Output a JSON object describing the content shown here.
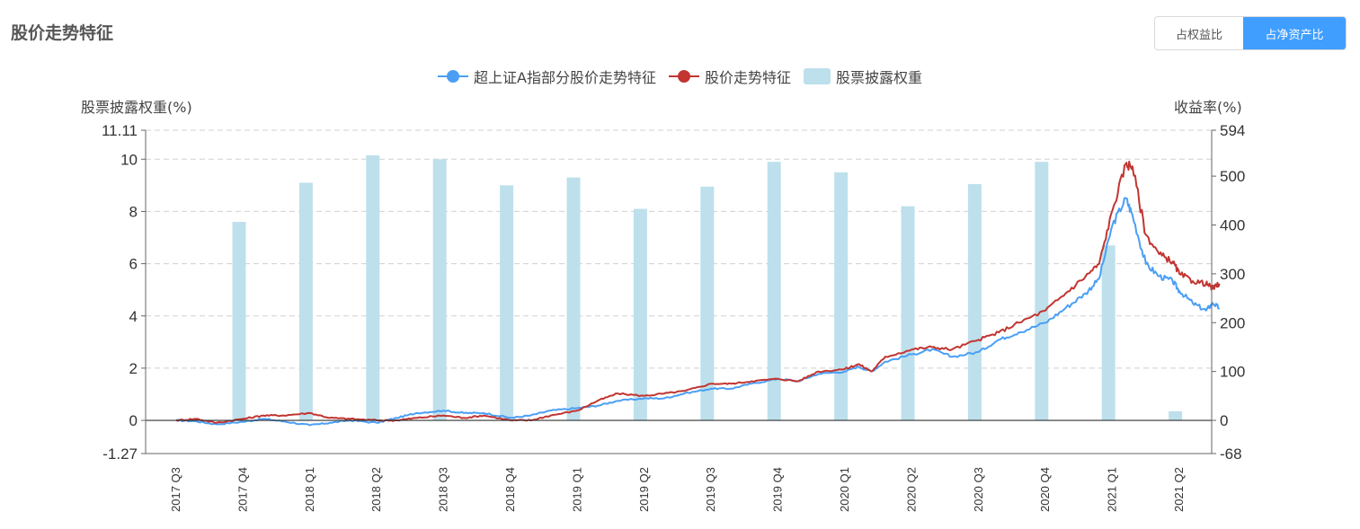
{
  "header": {
    "title": "股价走势特征",
    "toggle": [
      {
        "label": "占权益比",
        "active": false
      },
      {
        "label": "占净资产比",
        "active": true
      }
    ]
  },
  "legend": [
    {
      "label": "超上证A指部分股价走势特征",
      "color": "#4a9ff5",
      "kind": "line"
    },
    {
      "label": "股价走势特征",
      "color": "#c23531",
      "kind": "line"
    },
    {
      "label": "股票披露权重",
      "color": "#bde0ec",
      "kind": "bar"
    }
  ],
  "axis_titles": {
    "left": "股票披露权重(%)",
    "right": "收益率(%)"
  },
  "chart_data": {
    "type": "bar+line",
    "left_axis": {
      "min": -1.27,
      "max": 11.11,
      "ticks": [
        "-1.27",
        "0",
        "2",
        "4",
        "6",
        "8",
        "10",
        "11.11"
      ]
    },
    "right_axis": {
      "min": -68,
      "max": 594,
      "ticks": [
        "-68",
        "0",
        "100",
        "200",
        "300",
        "400",
        "500",
        "594"
      ]
    },
    "categories": [
      "2017 Q3",
      "2017 Q4",
      "2018 Q1",
      "2018 Q2",
      "2018 Q3",
      "2018 Q4",
      "2019 Q1",
      "2019 Q2",
      "2019 Q3",
      "2019 Q4",
      "2020 Q1",
      "2020 Q2",
      "2020 Q3",
      "2020 Q4",
      "2021 Q1",
      "2021 Q2"
    ],
    "bars": {
      "name": "股票披露权重",
      "values": [
        null,
        7.6,
        9.1,
        10.15,
        10.0,
        9.0,
        9.3,
        8.1,
        8.95,
        9.9,
        9.5,
        8.2,
        9.05,
        9.9,
        6.7,
        0.35
      ]
    },
    "series": [
      {
        "name": "超上证A指部分股价走势特征",
        "color": "#4a9ff5",
        "points": [
          [
            0,
            0
          ],
          [
            0.3,
            -2
          ],
          [
            0.6,
            -8
          ],
          [
            1.0,
            -3
          ],
          [
            1.3,
            3
          ],
          [
            1.6,
            -2
          ],
          [
            2.0,
            -10
          ],
          [
            2.3,
            -5
          ],
          [
            2.6,
            0
          ],
          [
            3.0,
            -5
          ],
          [
            3.3,
            5
          ],
          [
            3.6,
            15
          ],
          [
            4.0,
            20
          ],
          [
            4.3,
            15
          ],
          [
            4.6,
            15
          ],
          [
            5.0,
            5
          ],
          [
            5.3,
            10
          ],
          [
            5.6,
            20
          ],
          [
            6.0,
            25
          ],
          [
            6.3,
            30
          ],
          [
            6.6,
            40
          ],
          [
            7.0,
            45
          ],
          [
            7.3,
            45
          ],
          [
            7.6,
            55
          ],
          [
            8.0,
            65
          ],
          [
            8.3,
            65
          ],
          [
            8.6,
            75
          ],
          [
            9.0,
            85
          ],
          [
            9.3,
            80
          ],
          [
            9.6,
            95
          ],
          [
            10.0,
            100
          ],
          [
            10.2,
            110
          ],
          [
            10.4,
            100
          ],
          [
            10.6,
            120
          ],
          [
            11.0,
            135
          ],
          [
            11.3,
            145
          ],
          [
            11.6,
            130
          ],
          [
            12.0,
            140
          ],
          [
            12.3,
            165
          ],
          [
            12.6,
            180
          ],
          [
            13.0,
            200
          ],
          [
            13.3,
            230
          ],
          [
            13.6,
            260
          ],
          [
            13.8,
            290
          ],
          [
            14.0,
            400
          ],
          [
            14.2,
            455
          ],
          [
            14.3,
            420
          ],
          [
            14.5,
            320
          ],
          [
            14.7,
            295
          ],
          [
            14.9,
            285
          ],
          [
            15.0,
            265
          ],
          [
            15.2,
            240
          ],
          [
            15.4,
            225
          ],
          [
            15.5,
            240
          ],
          [
            15.6,
            230
          ]
        ]
      },
      {
        "name": "股价走势特征",
        "color": "#c23531",
        "points": [
          [
            0,
            0
          ],
          [
            0.3,
            3
          ],
          [
            0.6,
            -5
          ],
          [
            1.0,
            3
          ],
          [
            1.3,
            10
          ],
          [
            1.6,
            10
          ],
          [
            2.0,
            15
          ],
          [
            2.3,
            5
          ],
          [
            2.6,
            3
          ],
          [
            3.0,
            0
          ],
          [
            3.3,
            0
          ],
          [
            3.6,
            5
          ],
          [
            4.0,
            10
          ],
          [
            4.3,
            5
          ],
          [
            4.6,
            10
          ],
          [
            5.0,
            0
          ],
          [
            5.3,
            0
          ],
          [
            5.6,
            10
          ],
          [
            6.0,
            20
          ],
          [
            6.3,
            40
          ],
          [
            6.6,
            55
          ],
          [
            7.0,
            50
          ],
          [
            7.3,
            55
          ],
          [
            7.6,
            60
          ],
          [
            8.0,
            75
          ],
          [
            8.3,
            75
          ],
          [
            8.6,
            80
          ],
          [
            9.0,
            85
          ],
          [
            9.3,
            80
          ],
          [
            9.6,
            100
          ],
          [
            10.0,
            105
          ],
          [
            10.2,
            115
          ],
          [
            10.4,
            100
          ],
          [
            10.6,
            130
          ],
          [
            11.0,
            145
          ],
          [
            11.3,
            150
          ],
          [
            11.6,
            145
          ],
          [
            12.0,
            165
          ],
          [
            12.3,
            180
          ],
          [
            12.6,
            200
          ],
          [
            13.0,
            225
          ],
          [
            13.3,
            260
          ],
          [
            13.6,
            295
          ],
          [
            13.8,
            320
          ],
          [
            14.0,
            430
          ],
          [
            14.2,
            525
          ],
          [
            14.3,
            520
          ],
          [
            14.5,
            380
          ],
          [
            14.7,
            340
          ],
          [
            14.9,
            325
          ],
          [
            15.0,
            300
          ],
          [
            15.2,
            285
          ],
          [
            15.4,
            280
          ],
          [
            15.5,
            270
          ],
          [
            15.6,
            280
          ]
        ]
      }
    ]
  }
}
